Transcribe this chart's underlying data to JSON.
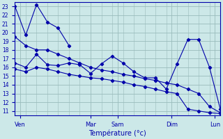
{
  "xlabel": "Température (°c)",
  "bg_color": "#cce8e8",
  "line_color": "#0000aa",
  "grid_color": "#99bbbb",
  "yticks": [
    11,
    12,
    13,
    14,
    15,
    16,
    17,
    18,
    19,
    20,
    21,
    22,
    23
  ],
  "series": [
    {
      "x": [
        0,
        1,
        2,
        3,
        4,
        5,
        6,
        7,
        8,
        9,
        10,
        11,
        12,
        13,
        14,
        15,
        16,
        17,
        18,
        19
      ],
      "y": [
        23,
        19.7,
        23.2,
        21.2,
        20.5,
        18.5,
        null,
        null,
        null,
        null,
        null,
        null,
        null,
        null,
        null,
        null,
        null,
        null,
        null,
        null
      ]
    },
    {
      "x": [
        0,
        1,
        2,
        3,
        4,
        5,
        6,
        7,
        8,
        9,
        10,
        11,
        12,
        13,
        14,
        15,
        16,
        17,
        18,
        19
      ],
      "y": [
        16.5,
        16.0,
        17.5,
        16.3,
        16.2,
        16.5,
        16.3,
        15.3,
        16.4,
        17.3,
        16.5,
        15.5,
        14.8,
        14.8,
        13.5,
        16.4,
        19.2,
        19.2,
        16.0,
        11.2
      ]
    },
    {
      "x": [
        0,
        1,
        2,
        3,
        4,
        5,
        6,
        7,
        8,
        9,
        10,
        11,
        12,
        13,
        14,
        15,
        16,
        17,
        18,
        19
      ],
      "y": [
        15.8,
        15.5,
        16.0,
        15.8,
        15.5,
        15.2,
        15.0,
        14.8,
        14.7,
        14.5,
        14.3,
        14.0,
        13.8,
        13.5,
        13.2,
        13.0,
        11.2,
        11.0,
        10.8,
        10.7
      ]
    },
    {
      "x": [
        0,
        1,
        2,
        3,
        4,
        5,
        6,
        7,
        8,
        9,
        10,
        11,
        12,
        13,
        14,
        15,
        16,
        17,
        18,
        19
      ],
      "y": [
        19.5,
        18.5,
        18.0,
        18.0,
        17.5,
        17.0,
        16.5,
        16.0,
        15.7,
        15.5,
        15.2,
        15.0,
        14.7,
        14.5,
        14.2,
        14.0,
        13.5,
        13.0,
        11.5,
        10.8
      ]
    }
  ],
  "xlim": [
    0,
    19
  ],
  "ylim": [
    10.5,
    23.5
  ],
  "major_xtick_positions": [
    0.5,
    7.0,
    9.5,
    14.5,
    18.5
  ],
  "major_xtick_labels": [
    "Ven",
    "Mar",
    "Sam",
    "Dim",
    "Lun"
  ]
}
